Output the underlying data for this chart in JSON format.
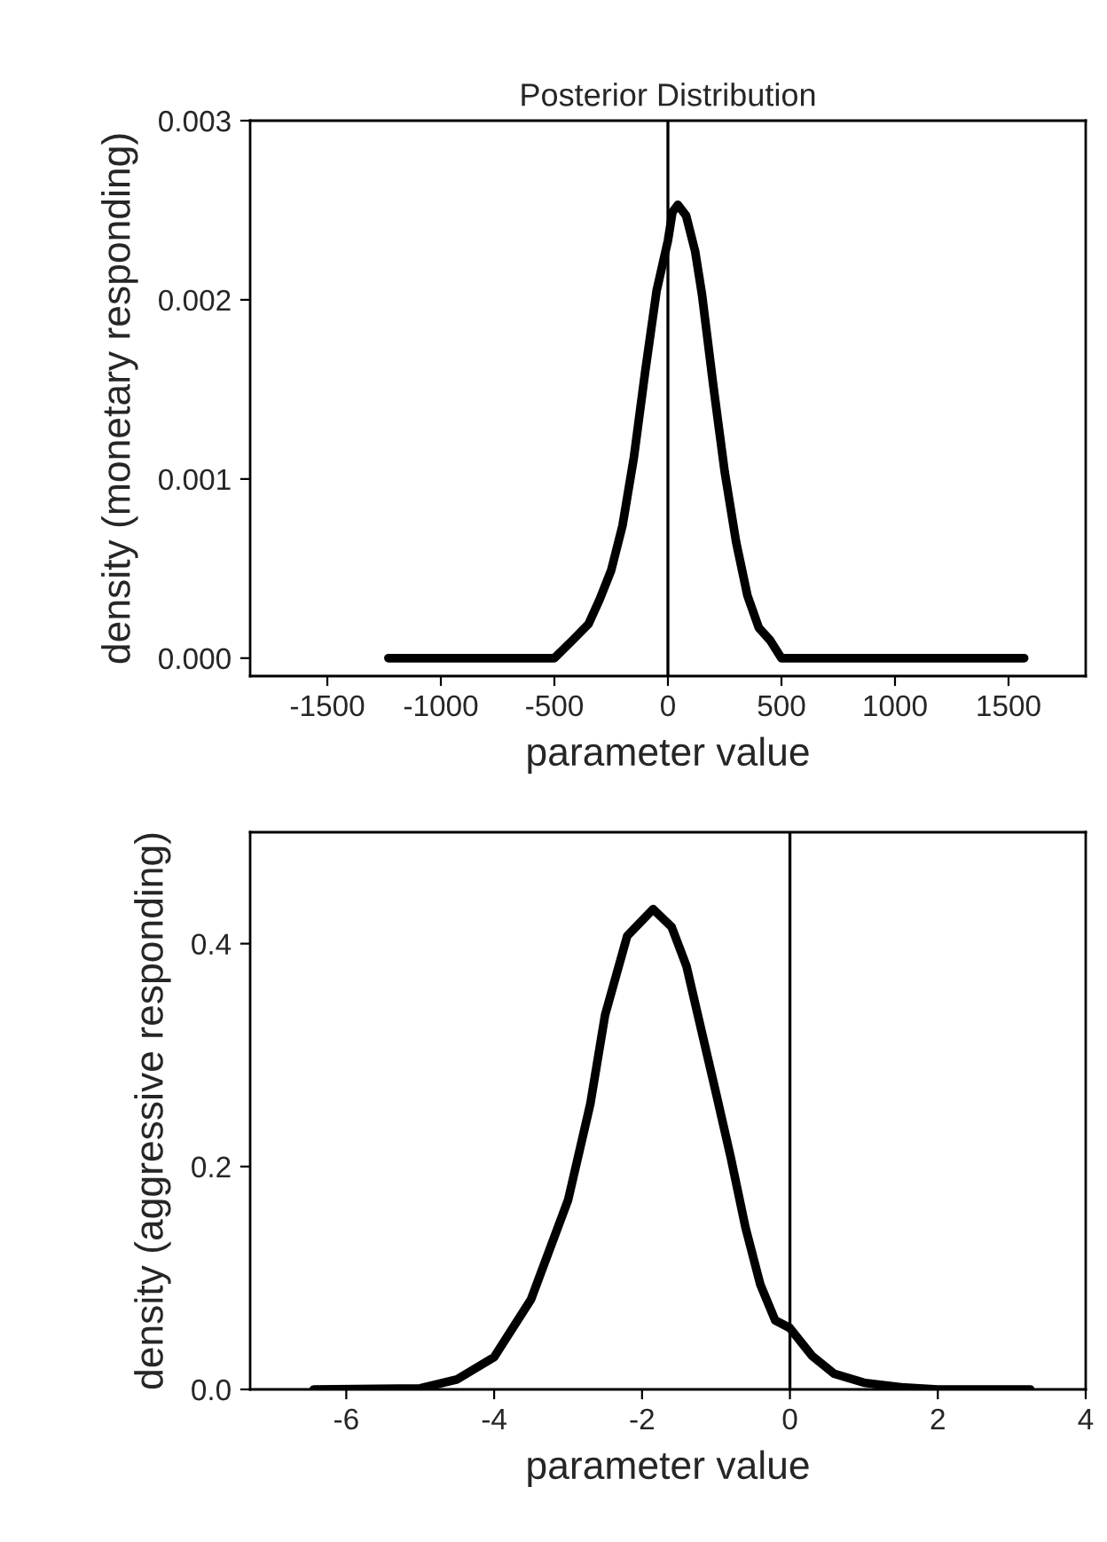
{
  "chart_data": [
    {
      "type": "line",
      "title": "Posterior Distribution",
      "xlabel": "parameter value",
      "ylabel": "density (monetary responding)",
      "x": [
        -1231,
        -700,
        -500,
        -420,
        -350,
        -300,
        -250,
        -200,
        -150,
        -100,
        -50,
        0,
        20,
        44,
        80,
        120,
        150,
        200,
        250,
        300,
        350,
        400,
        450,
        500,
        600,
        800,
        1569
      ],
      "series": [
        {
          "color": "#000000",
          "values": [
            0,
            0,
            0,
            0.0001,
            0.00019,
            0.00033,
            0.00049,
            0.00074,
            0.00112,
            0.0016,
            0.00205,
            0.00233,
            0.00249,
            0.00253,
            0.00247,
            0.00227,
            0.00203,
            0.00152,
            0.00104,
            0.00065,
            0.00035,
            0.00017,
            0.0001,
            0,
            0,
            0,
            0
          ]
        }
      ],
      "xlim": [
        -1840,
        1840
      ],
      "xticks": [
        -1500,
        -1000,
        -500,
        0,
        500,
        1000,
        1500
      ],
      "ylim": [
        -0.0001,
        0.003
      ],
      "yticks": [
        {
          "value": 0,
          "label": "0.000"
        },
        0.001,
        0.002,
        0.003
      ],
      "ref_lines": [
        {
          "axis": "x",
          "value": 0,
          "color": "#000000"
        }
      ]
    },
    {
      "type": "line",
      "xlabel": "parameter value",
      "ylabel": "density (aggressive responding)",
      "x": [
        -6.44,
        -5,
        -4.5,
        -4,
        -3.5,
        -3,
        -2.7,
        -2.5,
        -2.2,
        -1.85,
        -1.6,
        -1.4,
        -1.2,
        -1,
        -0.8,
        -0.6,
        -0.4,
        -0.2,
        0,
        0.3,
        0.6,
        1,
        1.5,
        2,
        3.25
      ],
      "series": [
        {
          "color": "#000000",
          "values": [
            0,
            0.001,
            0.009,
            0.029,
            0.081,
            0.17,
            0.256,
            0.336,
            0.407,
            0.431,
            0.415,
            0.38,
            0.323,
            0.266,
            0.208,
            0.145,
            0.094,
            0.062,
            0.055,
            0.03,
            0.014,
            0.006,
            0.002,
            0,
            0
          ]
        }
      ],
      "xlim": [
        -7.3,
        4
      ],
      "xticks": [
        -6,
        -4,
        -2,
        0,
        2,
        4
      ],
      "ylim": [
        0,
        0.5
      ],
      "yticks": [
        {
          "value": 0,
          "label": "0.0"
        },
        0.2,
        0.4
      ],
      "ref_lines": [
        {
          "axis": "x",
          "value": 0,
          "color": "#000000"
        }
      ]
    }
  ]
}
